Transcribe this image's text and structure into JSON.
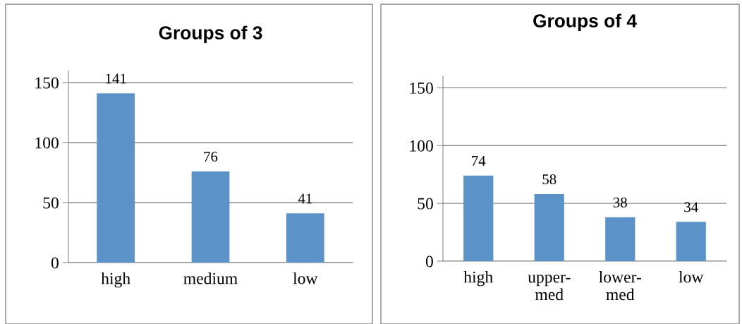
{
  "chart_data": [
    {
      "type": "bar",
      "title": "Groups of 3",
      "categories": [
        "high",
        "medium",
        "low"
      ],
      "series": [
        {
          "color": "#5b93c9",
          "values": [
            141,
            76,
            41
          ]
        }
      ],
      "ylim": [
        0,
        160
      ],
      "yticks": [
        0,
        50,
        100,
        150
      ],
      "grid": "y",
      "data_labels": true
    },
    {
      "type": "bar",
      "title": "Groups of 4",
      "categories": [
        "high",
        "upper-\nmed",
        "lower-\nmed",
        "low"
      ],
      "series": [
        {
          "color": "#5b93c9",
          "values": [
            74,
            58,
            38,
            34
          ]
        }
      ],
      "ylim": [
        0,
        160
      ],
      "yticks": [
        0,
        50,
        100,
        150
      ],
      "grid": "y",
      "data_labels": true
    }
  ]
}
